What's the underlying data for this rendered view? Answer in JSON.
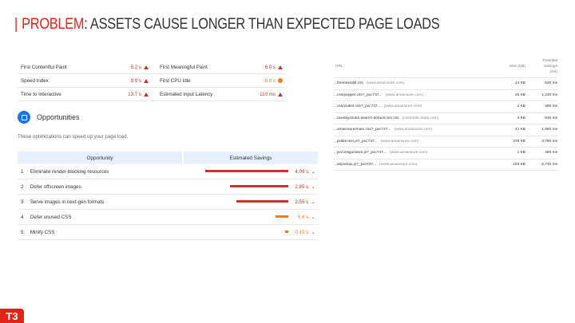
{
  "title": {
    "keyword": "PROBLEM",
    "rest": ": ASSETS CAUSE LONGER THAN EXPECTED PAGE LOADS"
  },
  "colors": {
    "accent": "#e2231a",
    "fail": "#c0392b",
    "average": "#e67e22",
    "info": "#1a73e8"
  },
  "metrics": [
    [
      {
        "name": "First Contentful Paint",
        "value": "5.2 s",
        "status": "fail"
      },
      {
        "name": "First Meaningful Paint",
        "value": "6.0 s",
        "status": "fail"
      }
    ],
    [
      {
        "name": "Speed Index",
        "value": "9.9 s",
        "status": "fail"
      },
      {
        "name": "First CPU Idle",
        "value": "6.0 s",
        "status": "average"
      }
    ],
    [
      {
        "name": "Time to Interactive",
        "value": "13.7 s",
        "status": "fail"
      },
      {
        "name": "Estimated Input Latency",
        "value": "110 ms",
        "status": "fail"
      }
    ]
  ],
  "opportunities": {
    "icon": "opportunities-icon",
    "title": "Opportunities",
    "subtitle": "These optimizations can speed up your page load.",
    "col_opportunity": "Opportunity",
    "col_savings": "Estimated Savings",
    "items": [
      {
        "num": "1",
        "name": "Eliminate render-blocking resources",
        "savings": "4.09 s",
        "seconds": 4.09,
        "status": "fail"
      },
      {
        "num": "2",
        "name": "Defer offscreen images",
        "savings": "2.85 s",
        "seconds": 2.85,
        "status": "fail"
      },
      {
        "num": "3",
        "name": "Serve images in next-gen formats",
        "savings": "2.55 s",
        "seconds": 2.55,
        "status": "fail"
      },
      {
        "num": "4",
        "name": "Defer unused CSS",
        "savings": "0.6 s",
        "seconds": 0.6,
        "status": "average"
      },
      {
        "num": "5",
        "name": "Minify CSS",
        "savings": "0.15 s",
        "seconds": 0.15,
        "status": "average"
      }
    ]
  },
  "url_table": {
    "col_url": "URL",
    "col_size": "Size (KB)",
    "col_savings_1": "Potential",
    "col_savings_2": "Savings",
    "col_savings_3": "(ms)",
    "rows": [
      {
        "url": "...themes/dljit.css",
        "host": "(www.amainsure.com)",
        "size": "14 KB",
        "savings": "630 ms"
      },
      {
        "url": "...css/pepper.css?_pxc747...",
        "host": "(www.amainsure.com)",
        "size": "25 KB",
        "savings": "1,230 ms"
      },
      {
        "url": "...css/vodlet.css?_pxc747...",
        "host": "(www.amainsure.com)",
        "size": "2 KB",
        "savings": "480 ms"
      },
      {
        "url": "...overlay/clubs-search-default.min.css",
        "host": "(customer.clubs.com)",
        "size": "4 KB",
        "savings": "930 ms"
      },
      {
        "url": "...amainsure/main.css?_pxc747...",
        "host": "(www.amainsure.com)",
        "size": "41 KB",
        "savings": "1,680 ms"
      },
      {
        "url": "...js/libs.min.js?_pxc747...",
        "host": "(www.amainsure.com)",
        "size": "278 KB",
        "savings": "3,780 ms"
      },
      {
        "url": "...js/configuration.js?_pxc747...",
        "host": "(www.amainsure.com)",
        "size": "1 KB",
        "savings": "480 ms"
      },
      {
        "url": "...dojo/dojo.js?_pxc747...",
        "host": "(www.amainsure.com)",
        "size": "183 KB",
        "savings": "2,730 ms"
      }
    ]
  },
  "logo": {
    "text": "T3"
  }
}
